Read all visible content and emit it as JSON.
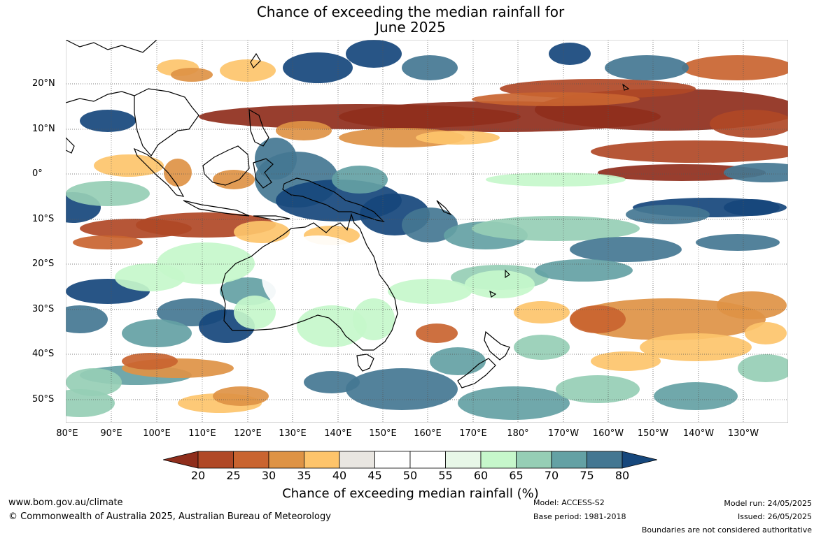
{
  "title_line1": "Chance of exceeding the median rainfall for",
  "title_line2": "June 2025",
  "lat_labels": [
    "20°N",
    "10°N",
    "0°",
    "10°S",
    "20°S",
    "30°S",
    "40°S",
    "50°S"
  ],
  "lon_labels": [
    "80°E",
    "90°E",
    "100°E",
    "110°E",
    "120°E",
    "130°E",
    "140°E",
    "150°E",
    "160°E",
    "170°E",
    "180°",
    "170°W",
    "160°W",
    "150°W",
    "140°W",
    "130°W"
  ],
  "colorbar": {
    "ticks": [
      "20",
      "25",
      "30",
      "35",
      "40",
      "45",
      "50",
      "55",
      "60",
      "65",
      "70",
      "75",
      "80"
    ],
    "colors": [
      "#8f2e1c",
      "#b04826",
      "#c96430",
      "#de9345",
      "#fdc46b",
      "#e9e6e1",
      "#ffffff",
      "#ffffff",
      "#e8f7e8",
      "#c6f7cb",
      "#96ceb5",
      "#64a1a4",
      "#447792",
      "#16477c"
    ],
    "label": "Chance of exceeding median rainfall (%)"
  },
  "footer": {
    "website": "www.bom.gov.au/climate",
    "copyright": "© Commonwealth of Australia 2025, Australian Bureau of Meteorology",
    "model": "Model: ACCESS-S2",
    "base_period": "Base period: 1981-2018",
    "model_run": "Model run: 24/05/2025",
    "issued": "Issued: 26/05/2025",
    "disclaimer": "Boundaries are not considered authoritative"
  }
}
